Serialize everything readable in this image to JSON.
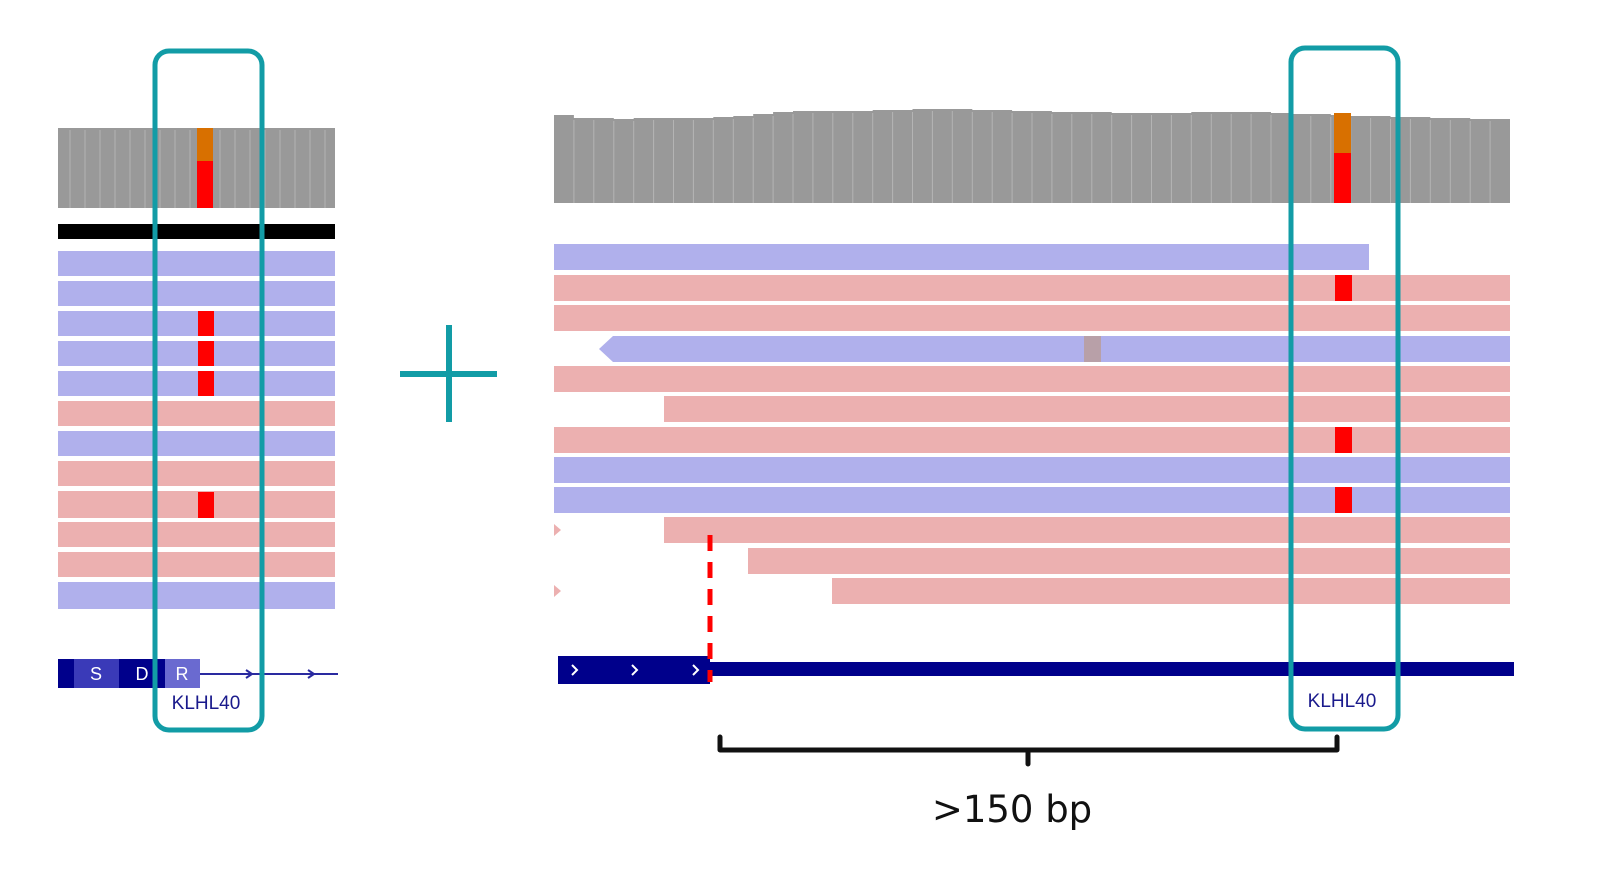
{
  "colors": {
    "coverage": "#999999",
    "coverage_divider": "#b4b4b4",
    "forward_read": "#b0b0ec",
    "reverse_read": "#ecb0b0",
    "mismatch": "#ff0000",
    "mismatch_partial": "#d87000",
    "highlight_box": "#129ca6",
    "gene": "#00008b",
    "gene_light": "#6a6ad0",
    "gene_mid": "#3a3ab8",
    "black": "#000000",
    "insert": "#b8a0a8"
  },
  "left_panel": {
    "exon_letters": [
      "S",
      "D",
      "R"
    ],
    "gene_label": "KLHL40"
  },
  "combine_symbol": "plus-icon",
  "right_panel": {
    "gene_label": "KLHL40",
    "distance_label": ">150 bp"
  }
}
